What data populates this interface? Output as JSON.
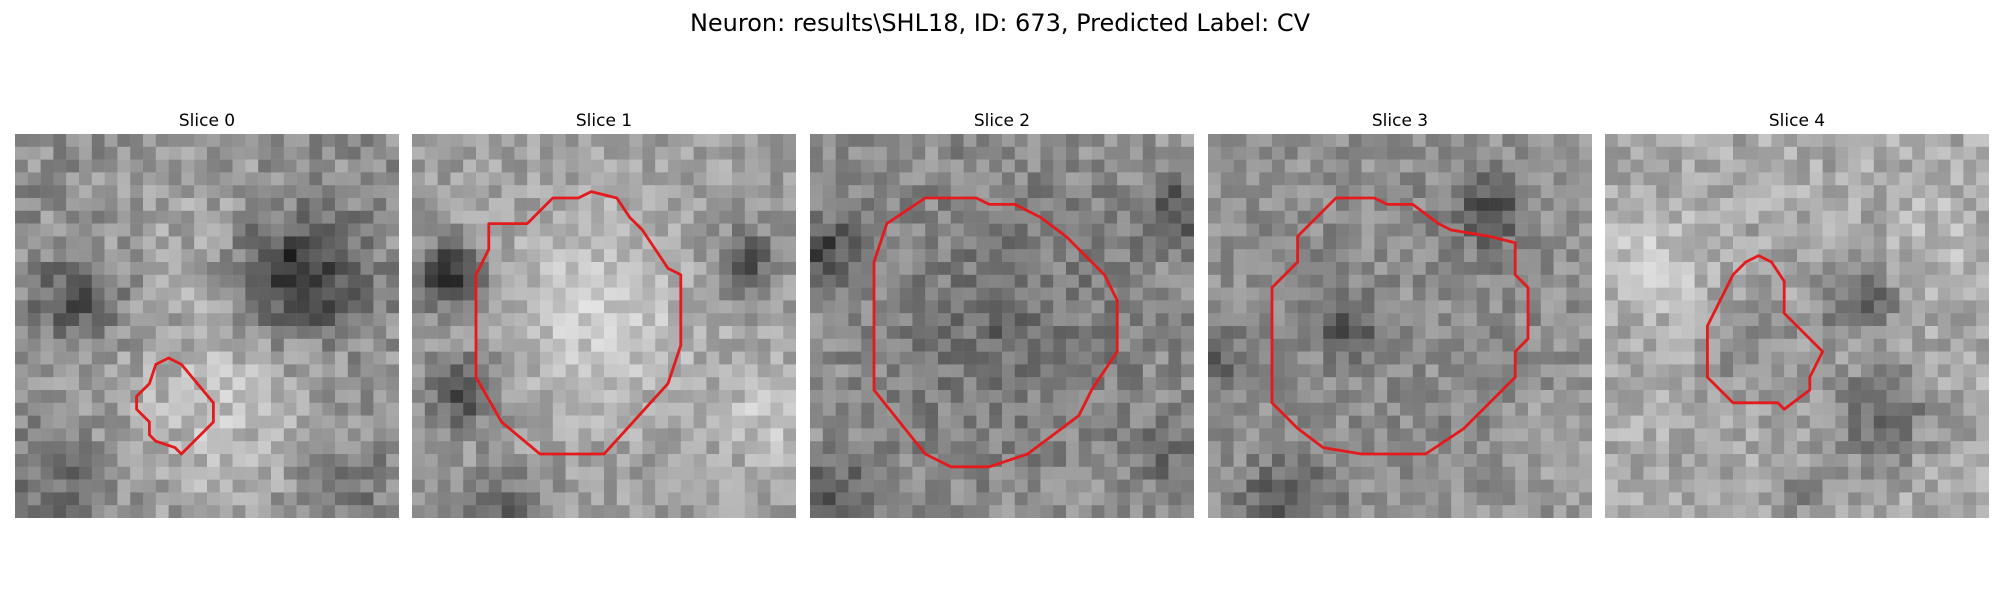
{
  "figure": {
    "title": "Neuron: results\\SHL18, ID: 673, Predicted Label: CV"
  },
  "panels": [
    {
      "title": "Slice 0"
    },
    {
      "title": "Slice 1"
    },
    {
      "title": "Slice 2"
    },
    {
      "title": "Slice 3"
    },
    {
      "title": "Slice 4"
    }
  ],
  "colors": {
    "contour": "#e41a1c",
    "background": "#ffffff"
  }
}
